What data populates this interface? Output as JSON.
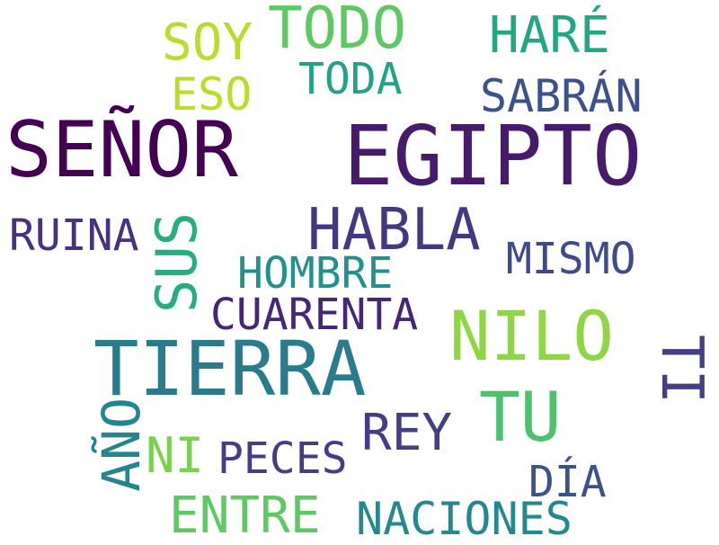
{
  "words": [
    {
      "text": "SEÑOR",
      "color": "#440154"
    },
    {
      "text": "EGIPTO",
      "color": "#471a6b"
    },
    {
      "text": "TIERRA",
      "color": "#2a7b8c"
    },
    {
      "text": "NILO",
      "color": "#8fd644"
    },
    {
      "text": "HABLA",
      "color": "#453781"
    },
    {
      "text": "TODO",
      "color": "#5ec962"
    },
    {
      "text": "TU",
      "color": "#4cc26c"
    },
    {
      "text": "TI",
      "color": "#433e85"
    },
    {
      "text": "SUS",
      "color": "#27ad81"
    },
    {
      "text": "AÑO",
      "color": "#25858e"
    },
    {
      "text": "HARÉ",
      "color": "#22a785"
    },
    {
      "text": "SOY",
      "color": "#b8de29"
    },
    {
      "text": "REY",
      "color": "#433e85"
    },
    {
      "text": "ENTRE",
      "color": "#5ec962"
    },
    {
      "text": "NACIONES",
      "color": "#23898e"
    },
    {
      "text": "SABRÁN",
      "color": "#3b528b"
    },
    {
      "text": "ESO",
      "color": "#b8de29"
    },
    {
      "text": "TODA",
      "color": "#20a386"
    },
    {
      "text": "RUINA",
      "color": "#46327e"
    },
    {
      "text": "HOMBRE",
      "color": "#21918c"
    },
    {
      "text": "CUARENTA",
      "color": "#482677"
    },
    {
      "text": "MISMO",
      "color": "#3e4a89"
    },
    {
      "text": "NI",
      "color": "#7ad151"
    },
    {
      "text": "PECES",
      "color": "#433e85"
    },
    {
      "text": "DÍA",
      "color": "#3b528b"
    }
  ]
}
